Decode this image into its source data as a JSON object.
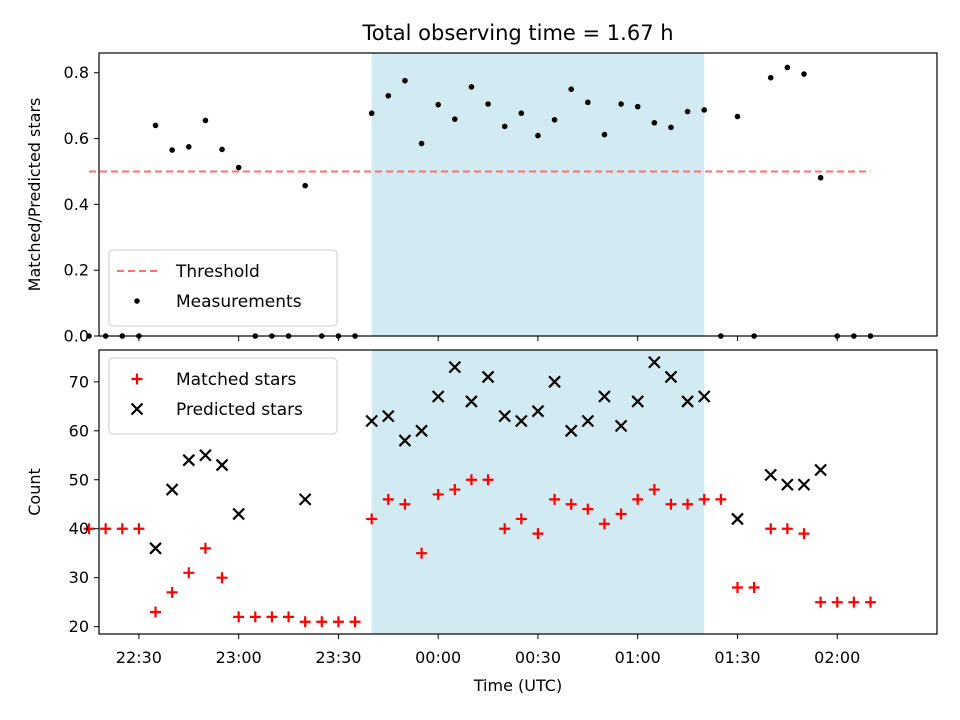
{
  "chart_data": {
    "type": "scatter",
    "title": "Total observing time = 1.67 h",
    "xlabel": "Time (UTC)",
    "x_ticks": [
      "22:30",
      "23:00",
      "23:30",
      "00:00",
      "00:30",
      "01:00",
      "01:30",
      "02:00"
    ],
    "x_range": [
      "22:18",
      "02:30"
    ],
    "shaded_interval": [
      "23:40",
      "01:20"
    ],
    "colors": {
      "threshold": "#ff7070",
      "shade": "#add8e6",
      "measurements": "#000000",
      "matched": "#ff0000",
      "predicted": "#000000"
    },
    "x": [
      "22:15",
      "22:20",
      "22:25",
      "22:30",
      "22:35",
      "22:40",
      "22:45",
      "22:50",
      "22:55",
      "23:00",
      "23:05",
      "23:10",
      "23:15",
      "23:20",
      "23:25",
      "23:30",
      "23:35",
      "23:40",
      "23:45",
      "23:50",
      "23:55",
      "00:00",
      "00:05",
      "00:10",
      "00:15",
      "00:20",
      "00:25",
      "00:30",
      "00:35",
      "00:40",
      "00:45",
      "00:50",
      "00:55",
      "01:00",
      "01:05",
      "01:10",
      "01:15",
      "01:20",
      "01:25",
      "01:30",
      "01:35",
      "01:40",
      "01:45",
      "01:50",
      "01:55",
      "02:00",
      "02:05",
      "02:10"
    ],
    "panels": [
      {
        "ylabel": "Matched/Predicted stars",
        "ylim": [
          0,
          0.86
        ],
        "y_ticks": [
          "0.0",
          "0.2",
          "0.4",
          "0.6",
          "0.8"
        ],
        "threshold": {
          "name": "Threshold",
          "value": 0.5,
          "x_range": [
            "22:15",
            "02:10"
          ]
        },
        "series": [
          {
            "name": "Measurements",
            "marker": "dot",
            "values": [
              0,
              0,
              0,
              0,
              0.64,
              0.565,
              0.575,
              0.655,
              0.567,
              0.512,
              0,
              0,
              0,
              0.457,
              0,
              0,
              0,
              0.677,
              0.73,
              0.776,
              0.585,
              0.703,
              0.659,
              0.757,
              0.705,
              0.637,
              0.677,
              0.609,
              0.657,
              0.75,
              0.71,
              0.612,
              0.705,
              0.697,
              0.648,
              0.634,
              0.682,
              0.687,
              0,
              0.667,
              0,
              0.785,
              0.816,
              0.796,
              0.481,
              0,
              0,
              0
            ]
          }
        ],
        "legend": "lower-left"
      },
      {
        "ylabel": "Count",
        "ylim": [
          18.5,
          76.5
        ],
        "y_ticks": [
          "20",
          "30",
          "40",
          "50",
          "60",
          "70"
        ],
        "series": [
          {
            "name": "Matched stars",
            "marker": "plus",
            "values": [
              40,
              40,
              40,
              40,
              23,
              27,
              31,
              36,
              30,
              22,
              22,
              22,
              22,
              21,
              21,
              21,
              21,
              42,
              46,
              45,
              35,
              47,
              48,
              50,
              50,
              40,
              42,
              39,
              46,
              45,
              44,
              41,
              43,
              46,
              48,
              45,
              45,
              46,
              46,
              28,
              28,
              40,
              40,
              39,
              25,
              25,
              25,
              25
            ]
          },
          {
            "name": "Predicted stars",
            "marker": "x",
            "values": [
              null,
              null,
              null,
              null,
              36,
              48,
              54,
              55,
              53,
              43,
              null,
              null,
              null,
              46,
              null,
              null,
              null,
              62,
              63,
              58,
              60,
              67,
              73,
              66,
              71,
              63,
              62,
              64,
              70,
              60,
              62,
              67,
              61,
              66,
              74,
              71,
              66,
              67,
              null,
              42,
              null,
              51,
              49,
              49,
              52,
              null,
              null,
              null
            ]
          }
        ],
        "legend": "upper-left"
      }
    ]
  }
}
